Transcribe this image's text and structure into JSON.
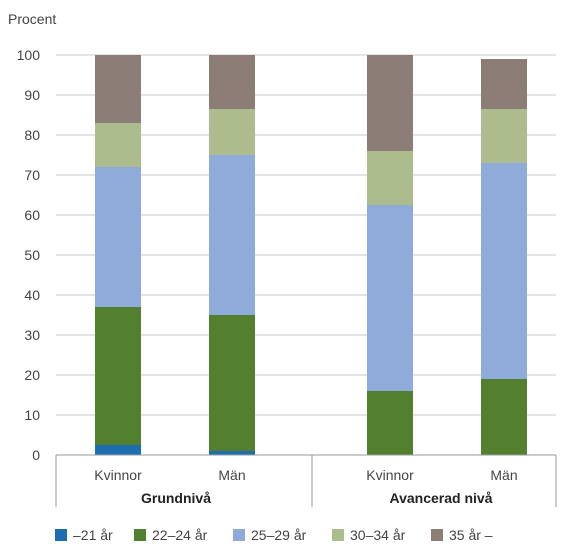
{
  "chart_data": {
    "type": "bar",
    "stacked": true,
    "ylabel": "Procent",
    "ylim": [
      0,
      100
    ],
    "yticks": [
      0,
      10,
      20,
      30,
      40,
      50,
      60,
      70,
      80,
      90,
      100
    ],
    "grid": true,
    "legend_position": "bottom",
    "categories": [
      "Kvinnor",
      "Män",
      "Kvinnor",
      "Män"
    ],
    "groups": [
      {
        "label": "Grundnivå",
        "categories": [
          0,
          1
        ]
      },
      {
        "label": "Avancerad nivå",
        "categories": [
          2,
          3
        ]
      }
    ],
    "series": [
      {
        "name": "–21 år",
        "color": "#1f6db1",
        "values": [
          2.5,
          1,
          0,
          0
        ]
      },
      {
        "name": "22–24 år",
        "color": "#53802f",
        "values": [
          34.5,
          34,
          16,
          19
        ]
      },
      {
        "name": "25–29 år",
        "color": "#8eabd9",
        "values": [
          35,
          40,
          46.5,
          54
        ]
      },
      {
        "name": "30–34 år",
        "color": "#adbc8d",
        "values": [
          11,
          11.5,
          13.5,
          13.5
        ]
      },
      {
        "name": "35 år –",
        "color": "#8d7d77",
        "values": [
          17,
          13.5,
          24,
          12.5
        ]
      }
    ]
  }
}
